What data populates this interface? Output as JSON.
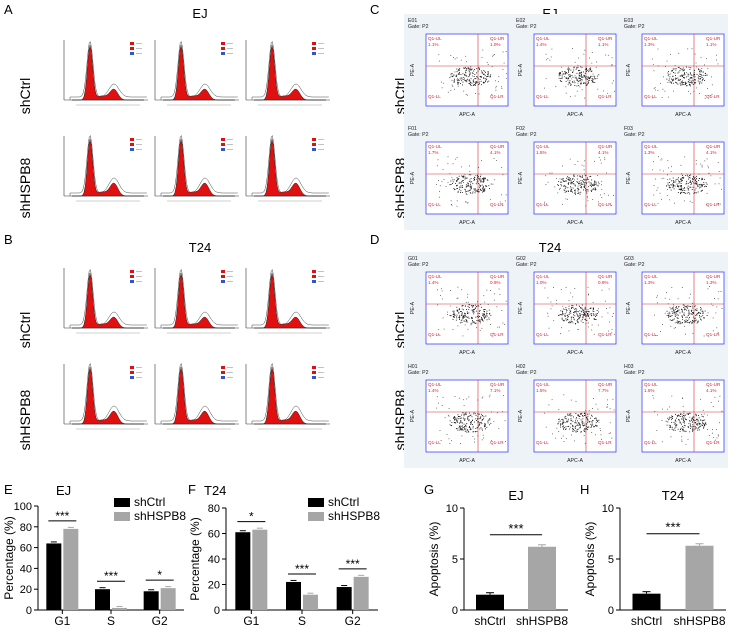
{
  "panels": {
    "A": {
      "letter": "A",
      "title": "EJ",
      "rows": [
        "shCtrl",
        "shHSPB8"
      ]
    },
    "B": {
      "letter": "B",
      "title": "T24",
      "rows": [
        "shCtrl",
        "shHSPB8"
      ]
    },
    "C": {
      "letter": "C",
      "title": "EJ",
      "rows": [
        "shCtrl",
        "shHSPB8"
      ],
      "plots": [
        [
          "E01",
          "E02",
          "E03"
        ],
        [
          "F01",
          "F02",
          "F03"
        ]
      ],
      "ur": [
        [
          "1.0%",
          "1.1%",
          "1.1%"
        ],
        [
          "4.1%",
          "4.1%",
          "4.1%"
        ]
      ],
      "ul": [
        [
          "1.1%",
          "1.4%",
          "1.3%"
        ],
        [
          "1.7%",
          "1.5%",
          "1.3%"
        ]
      ]
    },
    "D": {
      "letter": "D",
      "title": "T24",
      "rows": [
        "shCtrl",
        "shHSPB8"
      ],
      "plots": [
        [
          "G01",
          "G02",
          "G03"
        ],
        [
          "H01",
          "H02",
          "H03"
        ]
      ],
      "ur": [
        [
          "0.9%",
          "0.9%",
          "1.3%"
        ],
        [
          "7.1%",
          "7.7%",
          "4.1%"
        ]
      ],
      "ul": [
        [
          "1.4%",
          "1.0%",
          "1.3%"
        ],
        [
          "1.4%",
          "1.5%",
          "1.6%"
        ]
      ]
    },
    "E": {
      "letter": "E"
    },
    "F": {
      "letter": "F"
    },
    "G": {
      "letter": "G"
    },
    "H": {
      "letter": "H"
    }
  },
  "flow": {
    "gate": "Gate: P2",
    "xaxis": "APC-A",
    "yaxis": "PE-A",
    "q_ul": "Q1-UL",
    "q_ur": "Q1-UR",
    "q_ll": "Q1-LL",
    "q_lr": "Q1-LR"
  },
  "colors": {
    "shCtrl": "#000000",
    "shHSPB8": "#a6a6a6",
    "histogram_fill": "#e01010",
    "quadrant_lines": "#d0303a",
    "flow_axis": "#2a2aff"
  },
  "chart_data": [
    {
      "id": "E",
      "type": "bar",
      "title": "EJ",
      "ylabel": "Percentage (%)",
      "xlabel": "",
      "categories": [
        "G1",
        "S",
        "G2"
      ],
      "ylim": [
        0,
        100
      ],
      "yticks": [
        0,
        20,
        40,
        60,
        80,
        100
      ],
      "series": [
        {
          "name": "shCtrl",
          "values": [
            64,
            20,
            18
          ]
        },
        {
          "name": "shHSPB8",
          "values": [
            78,
            2,
            21
          ]
        }
      ],
      "significance": [
        "***",
        "***",
        "*"
      ],
      "legend": "top-right"
    },
    {
      "id": "F",
      "type": "bar",
      "title": "T24",
      "ylabel": "Percentage (%)",
      "xlabel": "",
      "categories": [
        "G1",
        "S",
        "G2"
      ],
      "ylim": [
        0,
        80
      ],
      "yticks": [
        0,
        20,
        40,
        60,
        80
      ],
      "series": [
        {
          "name": "shCtrl",
          "values": [
            61,
            22,
            18
          ]
        },
        {
          "name": "shHSPB8",
          "values": [
            63,
            12,
            26
          ]
        }
      ],
      "significance": [
        "*",
        "***",
        "***"
      ],
      "legend": "top-right"
    },
    {
      "id": "G",
      "type": "bar",
      "title": "EJ",
      "ylabel": "Apoptosis (%)",
      "xlabel": "",
      "categories": [
        "shCtrl",
        "shHSPB8"
      ],
      "ylim": [
        0,
        10
      ],
      "yticks": [
        0,
        5,
        10
      ],
      "values": [
        1.5,
        6.2
      ],
      "significance": [
        "***"
      ]
    },
    {
      "id": "H",
      "type": "bar",
      "title": "T24",
      "ylabel": "Apoptosis (%)",
      "xlabel": "",
      "categories": [
        "shCtrl",
        "shHSPB8"
      ],
      "ylim": [
        0,
        10
      ],
      "yticks": [
        0,
        5,
        10
      ],
      "values": [
        1.6,
        6.3
      ],
      "significance": [
        "***"
      ]
    }
  ]
}
